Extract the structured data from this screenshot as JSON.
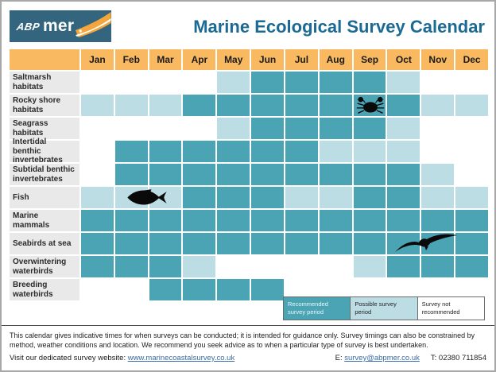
{
  "header": {
    "logo_abp": "ABP",
    "logo_mer": "mer",
    "title": "Marine Ecological Survey Calendar"
  },
  "chart_data": {
    "type": "heatmap",
    "title": "Marine Ecological Survey Calendar",
    "columns": [
      "Jan",
      "Feb",
      "Mar",
      "Apr",
      "May",
      "Jun",
      "Jul",
      "Aug",
      "Sep",
      "Oct",
      "Nov",
      "Dec"
    ],
    "value_codes": {
      "R": "Recommended survey period",
      "P": "Possible survey period",
      "N": "Survey not recommended"
    },
    "rows": [
      {
        "label": "Saltmarsh habitats",
        "values": [
          "N",
          "N",
          "N",
          "N",
          "P",
          "R",
          "R",
          "R",
          "R",
          "P",
          "N",
          "N"
        ]
      },
      {
        "label": "Rocky shore habitats",
        "values": [
          "P",
          "P",
          "P",
          "R",
          "R",
          "R",
          "R",
          "R",
          "R",
          "R",
          "P",
          "P"
        ],
        "icon": {
          "name": "crab-icon",
          "month_index": 8
        }
      },
      {
        "label": "Seagrass habitats",
        "values": [
          "N",
          "N",
          "N",
          "N",
          "P",
          "R",
          "R",
          "R",
          "R",
          "P",
          "N",
          "N"
        ]
      },
      {
        "label": "Intertidal benthic invertebrates",
        "values": [
          "N",
          "R",
          "R",
          "R",
          "R",
          "R",
          "R",
          "P",
          "P",
          "P",
          "N",
          "N"
        ]
      },
      {
        "label": "Subtidal benthic invertebrates",
        "values": [
          "N",
          "R",
          "R",
          "R",
          "R",
          "R",
          "R",
          "R",
          "R",
          "R",
          "P",
          "N"
        ]
      },
      {
        "label": "Fish",
        "values": [
          "P",
          "P",
          "P",
          "R",
          "R",
          "R",
          "P",
          "P",
          "R",
          "R",
          "P",
          "P"
        ],
        "icon": {
          "name": "fish-icon",
          "month_index": 1
        }
      },
      {
        "label": "Marine mammals",
        "values": [
          "R",
          "R",
          "R",
          "R",
          "R",
          "R",
          "R",
          "R",
          "R",
          "R",
          "R",
          "R"
        ]
      },
      {
        "label": "Seabirds at sea",
        "values": [
          "R",
          "R",
          "R",
          "R",
          "R",
          "R",
          "R",
          "R",
          "R",
          "R",
          "R",
          "R"
        ],
        "icon": {
          "name": "seabird-icon",
          "month_index": 9
        }
      },
      {
        "label": "Overwintering waterbirds",
        "values": [
          "R",
          "R",
          "R",
          "P",
          "N",
          "N",
          "N",
          "N",
          "P",
          "R",
          "R",
          "R"
        ]
      },
      {
        "label": "Breeding waterbirds",
        "values": [
          "N",
          "N",
          "R",
          "R",
          "R",
          "R",
          "N",
          "N",
          "N",
          "N",
          "N",
          "N"
        ]
      }
    ],
    "legend": [
      {
        "code": "R",
        "label": "Recommended survey period"
      },
      {
        "code": "P",
        "label": "Possible survey period"
      },
      {
        "code": "N",
        "label": "Survey not recommended"
      }
    ],
    "legend_position": "bottom-right",
    "colors": {
      "recommended": "#4aa4b4",
      "possible": "#bddde4",
      "not_recommended": "#ffffff",
      "month_header": "#f8b960",
      "row_label_bg": "#e9e9e9",
      "accent_title": "#1b6a94",
      "logo_bg": "#33667e",
      "logo_swoosh": "#f4a63c"
    }
  },
  "footer": {
    "disclaimer": "This calendar gives indicative times for when surveys can be conducted; it is intended for guidance only. Survey timings can also be constrained by method, weather conditions and location.  We recommend you seek advice as to when a particular type of survey is best undertaken.",
    "website_label": "Visit our dedicated survey website: ",
    "website_url": "www.marinecoastalsurvey.co.uk",
    "email_label": "E: ",
    "email": "survey@abpmer.co.uk",
    "phone": "T: 02380 711854"
  }
}
